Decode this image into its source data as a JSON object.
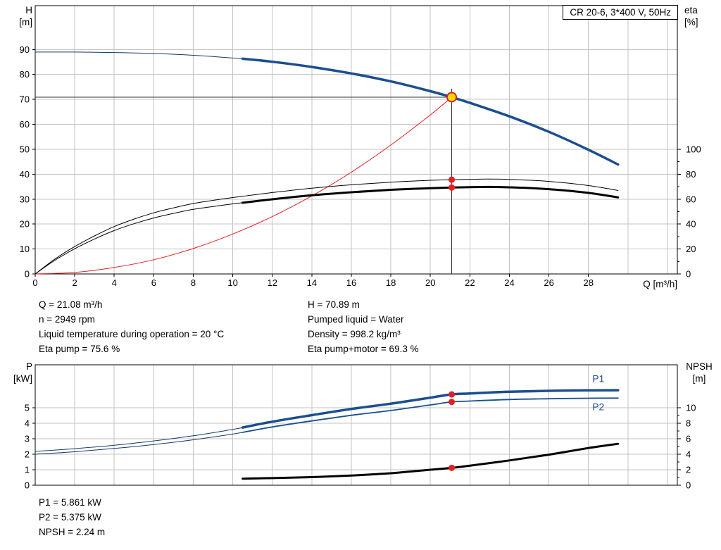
{
  "title_box": "CR 20-6, 3*400 V, 50Hz",
  "axis_corner_labels": {
    "top_left": [
      "H",
      "[m]"
    ],
    "top_right": [
      "eta",
      "[%]"
    ],
    "x": "Q [m³/h]",
    "bottom_left": [
      "P",
      "[kW]"
    ],
    "bottom_right": [
      "NPSH",
      "[m]"
    ]
  },
  "info_top": {
    "left": [
      "Q = 21.08 m³/h",
      "n = 2949 rpm",
      "Liquid temperature during operation = 20 °C",
      "Eta pump = 75.6 %"
    ],
    "right": [
      "H = 70.89 m",
      "Pumped liquid = Water",
      "Density = 998.2 kg/m³",
      "Eta pump+motor = 69.3 %"
    ]
  },
  "info_bottom": [
    "P1 = 5.861 kW",
    "P2 = 5.375 kW",
    "NPSH = 2.24 m"
  ],
  "colors": {
    "curve_blue_thick": "#1b4e8f",
    "curve_blue_thin": "#123a66",
    "red": "#e31e24",
    "marker_yellow": "#ffd800",
    "black": "#000000",
    "grid": "#c3c3c3",
    "crosshair": "#333333"
  },
  "operating_point": {
    "Q": 21.08,
    "H": 70.89,
    "eta_pump": 75.6,
    "eta_pump_motor": 69.3,
    "P1": 5.861,
    "P2": 5.375,
    "NPSH": 2.24
  },
  "chart_data": [
    {
      "type": "line",
      "name": "QH and efficiency curves",
      "x_axis": {
        "lim": [
          0,
          32.5
        ],
        "grid_step": 2,
        "tick_labels": [
          0,
          2,
          4,
          6,
          8,
          10,
          12,
          14,
          16,
          18,
          20,
          22,
          24,
          26,
          28
        ]
      },
      "y_left": {
        "label": "H [m]",
        "lim": [
          0,
          107.6
        ],
        "ticks": [
          0,
          10,
          20,
          30,
          40,
          50,
          60,
          70,
          80,
          90
        ],
        "grid": [
          10,
          20,
          30,
          40,
          50,
          60,
          70,
          80,
          90
        ]
      },
      "y_right": {
        "label": "eta [%]",
        "lim": [
          0,
          215.2
        ],
        "ticks": [
          0,
          20,
          40,
          60,
          80,
          100
        ],
        "minor_ticks": [
          10,
          30,
          50,
          70,
          90
        ]
      },
      "series": [
        {
          "name": "H curve (out of range, thin)",
          "axis": "left",
          "color": "#123a66",
          "width": 1,
          "points": [
            [
              0,
              89
            ],
            [
              2,
              89
            ],
            [
              4,
              88.8
            ],
            [
              6,
              88.4
            ],
            [
              8,
              87.7
            ],
            [
              10,
              86.6
            ],
            [
              10.5,
              86.3
            ]
          ]
        },
        {
          "name": "H curve",
          "axis": "left",
          "color": "#1b4e8f",
          "width": 3.5,
          "points": [
            [
              10.5,
              86.3
            ],
            [
              12,
              85.1
            ],
            [
              14,
              83.0
            ],
            [
              16,
              80.4
            ],
            [
              18,
              77.2
            ],
            [
              20,
              73.3
            ],
            [
              21.08,
              70.89
            ],
            [
              22,
              68.6
            ],
            [
              24,
              63.2
            ],
            [
              26,
              57.0
            ],
            [
              28,
              49.8
            ],
            [
              29.5,
              43.9
            ]
          ]
        },
        {
          "name": "system curve",
          "axis": "left",
          "color": "#e31e24",
          "width": 1,
          "points": [
            [
              0,
              0
            ],
            [
              2,
              0.6
            ],
            [
              4,
              2.6
            ],
            [
              6,
              5.7
            ],
            [
              8,
              10.2
            ],
            [
              10,
              16.0
            ],
            [
              12,
              23.0
            ],
            [
              14,
              31.3
            ],
            [
              16,
              40.8
            ],
            [
              18,
              51.7
            ],
            [
              20,
              63.8
            ],
            [
              21.08,
              70.89
            ]
          ]
        },
        {
          "name": "eta pump",
          "axis": "right",
          "color": "#000000",
          "width": 1,
          "points": [
            [
              0,
              0
            ],
            [
              1,
              12
            ],
            [
              2,
              22
            ],
            [
              3,
              30.5
            ],
            [
              4,
              38
            ],
            [
              5,
              44
            ],
            [
              6,
              49
            ],
            [
              7,
              53
            ],
            [
              8,
              56.5
            ],
            [
              9,
              59
            ],
            [
              10,
              61.3
            ],
            [
              10.5,
              62.3
            ],
            [
              12,
              65.3
            ],
            [
              14,
              68.8
            ],
            [
              16,
              71.5
            ],
            [
              18,
              73.6
            ],
            [
              20,
              75.1
            ],
            [
              21.08,
              75.6
            ],
            [
              22,
              75.9
            ],
            [
              23,
              76.1
            ],
            [
              24,
              75.8
            ],
            [
              25,
              75.2
            ],
            [
              26,
              74.2
            ],
            [
              27,
              72.8
            ],
            [
              28,
              70.9
            ],
            [
              29,
              68.4
            ],
            [
              29.5,
              67
            ]
          ]
        },
        {
          "name": "eta pump+motor (out of range, thin)",
          "axis": "right",
          "color": "#000000",
          "width": 1,
          "points": [
            [
              0,
              0
            ],
            [
              1,
              11
            ],
            [
              2,
              20.2
            ],
            [
              3,
              28
            ],
            [
              4,
              34.8
            ],
            [
              5,
              40.3
            ],
            [
              6,
              44.9
            ],
            [
              7,
              48.6
            ],
            [
              8,
              51.8
            ],
            [
              9,
              54.1
            ],
            [
              10,
              56.2
            ],
            [
              10.5,
              57.1
            ]
          ]
        },
        {
          "name": "eta pump+motor",
          "axis": "right",
          "color": "#000000",
          "width": 3,
          "points": [
            [
              10.5,
              57.1
            ],
            [
              12,
              59.9
            ],
            [
              14,
              63.1
            ],
            [
              16,
              65.5
            ],
            [
              18,
              67.5
            ],
            [
              20,
              68.8
            ],
            [
              21.08,
              69.3
            ],
            [
              22,
              69.6
            ],
            [
              23,
              69.8
            ],
            [
              24,
              69.5
            ],
            [
              25,
              68.9
            ],
            [
              26,
              68
            ],
            [
              27,
              66.7
            ],
            [
              28,
              65
            ],
            [
              29,
              62.7
            ],
            [
              29.5,
              61.4
            ]
          ]
        }
      ],
      "crosshair": {
        "q": 21.08,
        "v": 70.89
      },
      "markers": [
        {
          "q": 21.08,
          "v": 75.6,
          "axis": "right",
          "r": 4.5,
          "fill": "#e31e24"
        },
        {
          "q": 21.08,
          "v": 69.3,
          "axis": "right",
          "r": 4.5,
          "fill": "#e31e24"
        },
        {
          "q": 21.08,
          "v": 70.89,
          "axis": "left",
          "r": 6.5,
          "fill": "#ffd800",
          "stroke": "#e31e24"
        }
      ],
      "curve_labels": []
    },
    {
      "type": "line",
      "name": "Power and NPSH curves",
      "x_axis": {
        "lim": [
          0,
          32.5
        ],
        "grid_step": 2,
        "tick_labels": []
      },
      "y_left": {
        "label": "P [kW]",
        "lim": [
          0,
          7.77
        ],
        "ticks": [
          0,
          1,
          2,
          3,
          4,
          5
        ],
        "grid": [
          1,
          2,
          3,
          4,
          5
        ]
      },
      "y_right": {
        "label": "NPSH [m]",
        "lim": [
          0,
          15.55
        ],
        "ticks": [
          0,
          2,
          4,
          6,
          8,
          10
        ],
        "minor_ticks": [
          1,
          3,
          5,
          7,
          9
        ]
      },
      "series": [
        {
          "name": "P1 (out of range, thin)",
          "axis": "left",
          "color": "#123a66",
          "width": 1,
          "points": [
            [
              0,
              2.18
            ],
            [
              2,
              2.36
            ],
            [
              4,
              2.58
            ],
            [
              6,
              2.86
            ],
            [
              8,
              3.19
            ],
            [
              10,
              3.6
            ],
            [
              10.5,
              3.72
            ]
          ]
        },
        {
          "name": "P1",
          "axis": "left",
          "color": "#1b4e8f",
          "width": 3.5,
          "points": [
            [
              10.5,
              3.72
            ],
            [
              12,
              4.1
            ],
            [
              14,
              4.52
            ],
            [
              16,
              4.92
            ],
            [
              18,
              5.26
            ],
            [
              20,
              5.65
            ],
            [
              21.08,
              5.861
            ],
            [
              22,
              5.92
            ],
            [
              24,
              6.03
            ],
            [
              26,
              6.09
            ],
            [
              28,
              6.12
            ],
            [
              29.5,
              6.13
            ]
          ]
        },
        {
          "name": "P2 (out of range, thin)",
          "axis": "left",
          "color": "#123a66",
          "width": 1,
          "points": [
            [
              0,
              2.0
            ],
            [
              2,
              2.16
            ],
            [
              4,
              2.37
            ],
            [
              6,
              2.62
            ],
            [
              8,
              2.93
            ],
            [
              10,
              3.3
            ],
            [
              10.5,
              3.41
            ]
          ]
        },
        {
          "name": "P2",
          "axis": "left",
          "color": "#1b4e8f",
          "width": 1.8,
          "points": [
            [
              10.5,
              3.41
            ],
            [
              12,
              3.76
            ],
            [
              14,
              4.15
            ],
            [
              16,
              4.51
            ],
            [
              18,
              4.82
            ],
            [
              20,
              5.18
            ],
            [
              21.08,
              5.375
            ],
            [
              22,
              5.43
            ],
            [
              24,
              5.53
            ],
            [
              26,
              5.58
            ],
            [
              28,
              5.61
            ],
            [
              29.5,
              5.62
            ]
          ]
        },
        {
          "name": "NPSH",
          "axis": "right",
          "color": "#000000",
          "width": 3,
          "points": [
            [
              10.5,
              0.85
            ],
            [
              12,
              0.92
            ],
            [
              14,
              1.05
            ],
            [
              16,
              1.25
            ],
            [
              18,
              1.55
            ],
            [
              20,
              2.0
            ],
            [
              21.08,
              2.24
            ],
            [
              22,
              2.52
            ],
            [
              24,
              3.2
            ],
            [
              26,
              3.95
            ],
            [
              28,
              4.8
            ],
            [
              29.5,
              5.35
            ]
          ]
        }
      ],
      "markers": [
        {
          "q": 21.08,
          "v": 5.861,
          "axis": "left",
          "r": 4.5,
          "fill": "#e31e24"
        },
        {
          "q": 21.08,
          "v": 5.375,
          "axis": "left",
          "r": 4.5,
          "fill": "#e31e24"
        },
        {
          "q": 21.08,
          "v": 2.24,
          "axis": "right",
          "r": 4.5,
          "fill": "#e31e24"
        }
      ],
      "curve_labels": [
        {
          "text": "P1",
          "q": 28.5,
          "v": 6.85,
          "axis": "left",
          "color": "#1b4e8f"
        },
        {
          "text": "P2",
          "q": 28.5,
          "v": 5.05,
          "axis": "left",
          "color": "#1b4e8f"
        }
      ]
    }
  ]
}
